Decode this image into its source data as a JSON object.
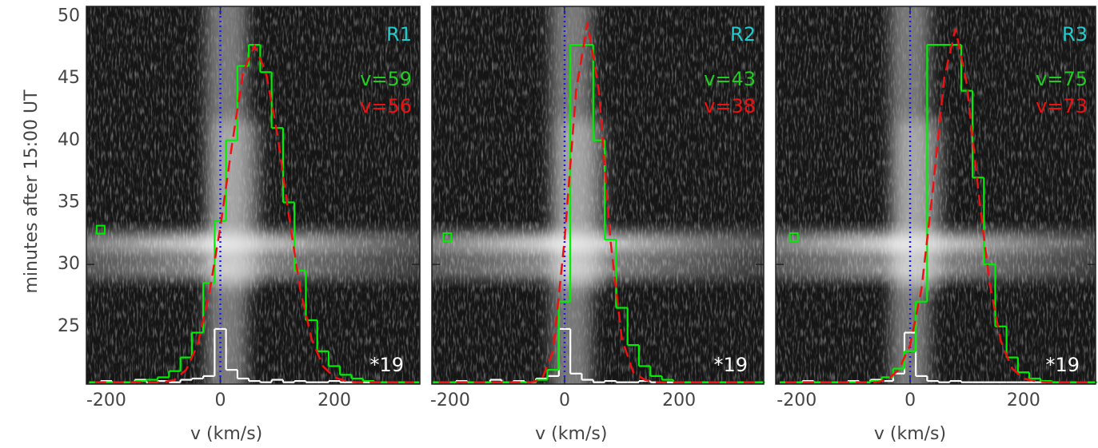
{
  "chart_data": [
    {
      "type": "line",
      "xlabel": "v (km/s)",
      "ylabel": "minutes after 15:00 UT",
      "xlim": [
        -235,
        350
      ],
      "ylim": [
        20.35,
        50.8
      ],
      "xticks": [
        -200,
        0,
        200
      ],
      "yticks": [
        25,
        30,
        35,
        40,
        45,
        50
      ],
      "label": {
        "text": "R1",
        "color": "#22cccc"
      },
      "annotations": [
        {
          "text": "v=59",
          "color": "#22cc22"
        },
        {
          "text": "v=56",
          "color": "#ee1111"
        }
      ],
      "scale_label": "*19",
      "vline": 0,
      "marker": {
        "x": -210,
        "y": 32.8
      },
      "x": [
        -220,
        -200,
        -180,
        -160,
        -140,
        -120,
        -100,
        -80,
        -60,
        -40,
        -20,
        0,
        20,
        40,
        60,
        80,
        100,
        120,
        140,
        160,
        180,
        200,
        220,
        240,
        260,
        280,
        300,
        320,
        340
      ],
      "series": [
        {
          "color": "#ffffff",
          "step": true,
          "values": [
            20.5,
            20.6,
            20.5,
            20.5,
            20.7,
            20.5,
            20.6,
            20.5,
            20.7,
            20.8,
            21,
            24.8,
            21.5,
            20.8,
            20.6,
            20.5,
            20.7,
            20.5,
            20.6,
            20.5,
            20.5,
            20.6,
            20.5,
            20.5,
            20.5,
            20.5,
            20.5,
            20.5,
            20.5
          ]
        },
        {
          "color": "#00ee00",
          "step": true,
          "values": [
            20.5,
            20.5,
            20.5,
            20.5,
            20.6,
            20.7,
            20.9,
            21.4,
            22.5,
            24.5,
            28.5,
            33.5,
            40,
            46,
            47.7,
            45.5,
            41,
            35,
            29.5,
            25.5,
            23,
            21.8,
            21.1,
            20.8,
            20.6,
            20.5,
            20.5,
            20.5,
            20.5
          ]
        },
        {
          "color": "#ee1111",
          "dash": true,
          "values": [
            20.5,
            20.5,
            20.5,
            20.5,
            20.5,
            20.5,
            20.5,
            20.7,
            21.5,
            23.5,
            27.5,
            33,
            39.5,
            45.5,
            47.6,
            45.5,
            40.5,
            34,
            28,
            24,
            21.8,
            20.9,
            20.6,
            20.5,
            20.5,
            20.5,
            20.5,
            20.5,
            20.5
          ]
        }
      ]
    },
    {
      "type": "line",
      "xlabel": "v (km/s)",
      "xlim": [
        -232,
        348
      ],
      "ylim": [
        20.35,
        50.8
      ],
      "xticks": [
        -200,
        0,
        200
      ],
      "label": {
        "text": "R2",
        "color": "#22cccc"
      },
      "annotations": [
        {
          "text": "v=43",
          "color": "#22cc22"
        },
        {
          "text": "v=38",
          "color": "#ee1111"
        }
      ],
      "scale_label": "*19",
      "vline": 0,
      "marker": {
        "x": -205,
        "y": 32.2
      },
      "x": [
        -220,
        -200,
        -180,
        -160,
        -140,
        -120,
        -100,
        -80,
        -60,
        -40,
        -20,
        0,
        20,
        40,
        60,
        80,
        100,
        120,
        140,
        160,
        180,
        200,
        220,
        240,
        260,
        280,
        300,
        320,
        340
      ],
      "series": [
        {
          "color": "#ffffff",
          "step": true,
          "values": [
            20.5,
            20.5,
            20.6,
            20.5,
            20.5,
            20.7,
            20.5,
            20.6,
            20.5,
            20.8,
            21,
            24.8,
            21.2,
            20.7,
            20.5,
            20.6,
            20.5,
            20.5,
            20.6,
            20.5,
            20.5,
            20.5,
            20.5,
            20.5,
            20.5,
            20.5,
            20.5,
            20.5,
            20.5
          ]
        },
        {
          "color": "#00ee00",
          "step": true,
          "values": [
            20.5,
            20.5,
            20.5,
            20.5,
            20.5,
            20.5,
            20.5,
            20.5,
            20.5,
            20.7,
            21.5,
            27,
            47.7,
            47.7,
            40,
            32,
            26.5,
            23.5,
            21.8,
            21,
            20.7,
            20.5,
            20.5,
            20.5,
            20.5,
            20.5,
            20.5,
            20.5,
            20.5
          ]
        },
        {
          "color": "#ee1111",
          "dash": true,
          "values": [
            20.5,
            20.5,
            20.5,
            20.5,
            20.5,
            20.5,
            20.5,
            20.5,
            20.5,
            20.7,
            23,
            32,
            44,
            49.5,
            44,
            32,
            24,
            21.3,
            20.7,
            20.5,
            20.5,
            20.5,
            20.5,
            20.5,
            20.5,
            20.5,
            20.5,
            20.5,
            20.5
          ]
        }
      ]
    },
    {
      "type": "line",
      "xlabel": "v (km/s)",
      "xlim": [
        -237,
        327
      ],
      "ylim": [
        20.35,
        50.8
      ],
      "xticks": [
        -200,
        0,
        200
      ],
      "label": {
        "text": "R3",
        "color": "#22cccc"
      },
      "annotations": [
        {
          "text": "v=75",
          "color": "#22cc22"
        },
        {
          "text": "v=73",
          "color": "#ee1111"
        }
      ],
      "scale_label": "*19",
      "vline": 0,
      "marker": {
        "x": -205,
        "y": 32.2
      },
      "x": [
        -220,
        -200,
        -180,
        -160,
        -140,
        -120,
        -100,
        -80,
        -60,
        -40,
        -20,
        0,
        20,
        40,
        60,
        80,
        100,
        120,
        140,
        160,
        180,
        200,
        220,
        240,
        260,
        280,
        300,
        320
      ],
      "series": [
        {
          "color": "#ffffff",
          "step": true,
          "values": [
            20.5,
            20.5,
            20.6,
            20.5,
            20.5,
            20.5,
            20.6,
            20.5,
            20.7,
            20.6,
            21.2,
            24.5,
            21,
            20.6,
            20.5,
            20.6,
            20.5,
            20.5,
            20.5,
            20.5,
            20.5,
            20.5,
            20.5,
            20.5,
            20.5,
            20.5,
            20.5,
            20.5
          ]
        },
        {
          "color": "#00ee00",
          "step": true,
          "values": [
            20.5,
            20.5,
            20.5,
            20.5,
            20.5,
            20.5,
            20.5,
            20.5,
            20.6,
            20.9,
            21.6,
            23,
            27,
            47.7,
            47.7,
            47.7,
            44,
            37,
            30,
            25,
            22.5,
            21.3,
            20.8,
            20.6,
            20.5,
            20.5,
            20.5,
            20.5
          ]
        },
        {
          "color": "#ee1111",
          "dash": true,
          "values": [
            20.5,
            20.5,
            20.5,
            20.5,
            20.5,
            20.5,
            20.5,
            20.5,
            20.5,
            20.7,
            21.5,
            23.5,
            28,
            36,
            45,
            49,
            44.5,
            36,
            28.5,
            23.8,
            21.6,
            20.8,
            20.6,
            20.5,
            20.5,
            20.5,
            20.5,
            20.5
          ]
        }
      ]
    }
  ]
}
